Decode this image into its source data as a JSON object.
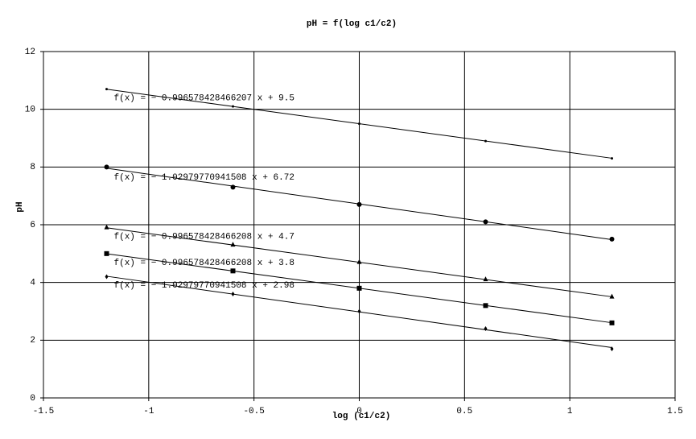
{
  "chart_data": {
    "type": "scatter",
    "title": "pH = f(log c1/c2)",
    "x_label": "log (c1/c2)",
    "y_label": "pH",
    "xlim": [
      -1.5,
      1.5
    ],
    "xticks": [
      -1.5,
      -1,
      -0.5,
      0,
      0.5,
      1,
      1.5
    ],
    "ylim": [
      0,
      12
    ],
    "yticks": [
      0,
      2,
      4,
      6,
      8,
      10,
      12
    ],
    "grid": true,
    "series": [
      {
        "color": "#000000",
        "marker": "dot",
        "x": [
          -1.2,
          -0.6,
          0,
          0.6,
          1.2
        ],
        "values": [
          10.7,
          10.1,
          9.5,
          8.9,
          8.3
        ],
        "trendline": {
          "label": "f(x) = − 0.996578428466207 x + 9.5",
          "slope": -0.996578428466207,
          "intercept": 9.5
        }
      },
      {
        "color": "#000000",
        "marker": "circle",
        "x": [
          -1.2,
          -0.6,
          0,
          0.6,
          1.2
        ],
        "values": [
          8.0,
          7.3,
          6.7,
          6.1,
          5.5
        ],
        "trendline": {
          "label": "f(x) = − 1.02979770941508 x + 6.72",
          "slope": -1.02979770941508,
          "intercept": 6.72
        }
      },
      {
        "color": "#000000",
        "marker": "triangle",
        "x": [
          -1.2,
          -0.6,
          0,
          0.6,
          1.2
        ],
        "values": [
          5.9,
          5.3,
          4.7,
          4.1,
          3.5
        ],
        "trendline": {
          "label": "f(x) = − 0.996578428466208 x + 4.7",
          "slope": -0.996578428466208,
          "intercept": 4.7
        }
      },
      {
        "color": "#000000",
        "marker": "square",
        "x": [
          -1.2,
          -0.6,
          0,
          0.6,
          1.2
        ],
        "values": [
          5.0,
          4.4,
          3.8,
          3.2,
          2.6
        ],
        "trendline": {
          "label": "f(x) = − 0.996578428466208 x + 3.8",
          "slope": -0.996578428466208,
          "intercept": 3.8
        }
      },
      {
        "color": "#000000",
        "marker": "diamond",
        "x": [
          -1.2,
          -0.6,
          0,
          0.6,
          1.2
        ],
        "values": [
          4.2,
          3.6,
          3.0,
          2.4,
          1.7
        ],
        "trendline": {
          "label": "f(x) = − 1.02979770941508 x + 2.98",
          "slope": -1.02979770941508,
          "intercept": 2.98
        }
      }
    ]
  }
}
